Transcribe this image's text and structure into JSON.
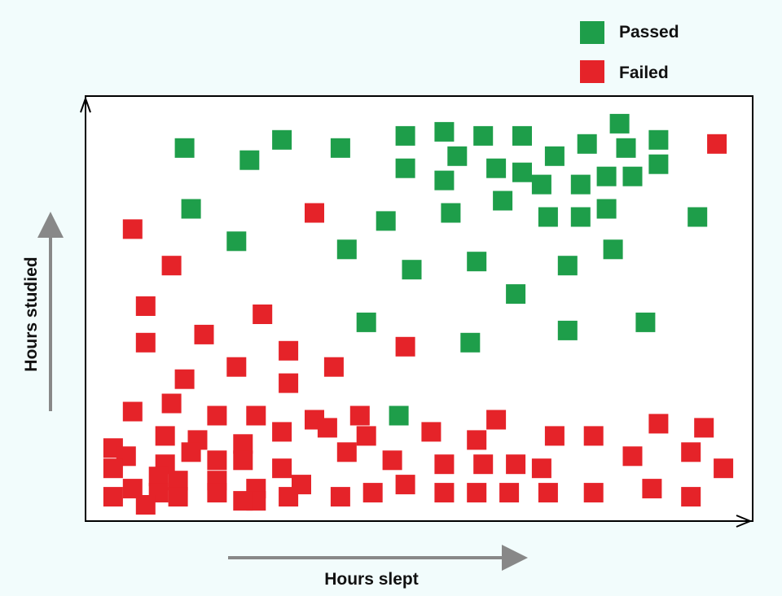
{
  "chart_data": {
    "type": "scatter",
    "title": "",
    "xlabel": "Hours slept",
    "ylabel": "Hours studied",
    "xlim": [
      0,
      1
    ],
    "ylim": [
      0,
      1
    ],
    "grid": false,
    "ticks": false,
    "legend_position": "top-right",
    "series": [
      {
        "name": "Passed",
        "color": "#1e9e4a",
        "points": [
          [
            0.14,
            0.9
          ],
          [
            0.24,
            0.87
          ],
          [
            0.29,
            0.92
          ],
          [
            0.38,
            0.9
          ],
          [
            0.48,
            0.93
          ],
          [
            0.54,
            0.94
          ],
          [
            0.6,
            0.93
          ],
          [
            0.66,
            0.93
          ],
          [
            0.76,
            0.91
          ],
          [
            0.81,
            0.96
          ],
          [
            0.87,
            0.92
          ],
          [
            0.82,
            0.9
          ],
          [
            0.56,
            0.88
          ],
          [
            0.71,
            0.88
          ],
          [
            0.48,
            0.85
          ],
          [
            0.62,
            0.85
          ],
          [
            0.66,
            0.84
          ],
          [
            0.69,
            0.81
          ],
          [
            0.75,
            0.81
          ],
          [
            0.79,
            0.83
          ],
          [
            0.83,
            0.83
          ],
          [
            0.87,
            0.86
          ],
          [
            0.54,
            0.82
          ],
          [
            0.15,
            0.75
          ],
          [
            0.45,
            0.72
          ],
          [
            0.55,
            0.74
          ],
          [
            0.63,
            0.77
          ],
          [
            0.7,
            0.73
          ],
          [
            0.75,
            0.73
          ],
          [
            0.79,
            0.75
          ],
          [
            0.93,
            0.73
          ],
          [
            0.22,
            0.67
          ],
          [
            0.39,
            0.65
          ],
          [
            0.49,
            0.6
          ],
          [
            0.59,
            0.62
          ],
          [
            0.73,
            0.61
          ],
          [
            0.8,
            0.65
          ],
          [
            0.65,
            0.54
          ],
          [
            0.42,
            0.47
          ],
          [
            0.58,
            0.42
          ],
          [
            0.73,
            0.45
          ],
          [
            0.85,
            0.47
          ],
          [
            0.47,
            0.24
          ]
        ]
      },
      {
        "name": "Failed",
        "color": "#e52329",
        "points": [
          [
            0.96,
            0.91
          ],
          [
            0.34,
            0.74
          ],
          [
            0.06,
            0.7
          ],
          [
            0.12,
            0.61
          ],
          [
            0.08,
            0.51
          ],
          [
            0.26,
            0.49
          ],
          [
            0.08,
            0.42
          ],
          [
            0.17,
            0.44
          ],
          [
            0.3,
            0.4
          ],
          [
            0.48,
            0.41
          ],
          [
            0.22,
            0.36
          ],
          [
            0.37,
            0.36
          ],
          [
            0.14,
            0.33
          ],
          [
            0.3,
            0.32
          ],
          [
            0.06,
            0.25
          ],
          [
            0.12,
            0.27
          ],
          [
            0.19,
            0.24
          ],
          [
            0.25,
            0.24
          ],
          [
            0.34,
            0.23
          ],
          [
            0.41,
            0.24
          ],
          [
            0.62,
            0.23
          ],
          [
            0.87,
            0.22
          ],
          [
            0.94,
            0.21
          ],
          [
            0.03,
            0.16
          ],
          [
            0.11,
            0.19
          ],
          [
            0.16,
            0.18
          ],
          [
            0.23,
            0.17
          ],
          [
            0.29,
            0.2
          ],
          [
            0.36,
            0.21
          ],
          [
            0.42,
            0.19
          ],
          [
            0.52,
            0.2
          ],
          [
            0.59,
            0.18
          ],
          [
            0.71,
            0.19
          ],
          [
            0.77,
            0.19
          ],
          [
            0.05,
            0.14
          ],
          [
            0.11,
            0.12
          ],
          [
            0.15,
            0.15
          ],
          [
            0.19,
            0.13
          ],
          [
            0.23,
            0.13
          ],
          [
            0.29,
            0.11
          ],
          [
            0.39,
            0.15
          ],
          [
            0.46,
            0.13
          ],
          [
            0.54,
            0.12
          ],
          [
            0.6,
            0.12
          ],
          [
            0.65,
            0.12
          ],
          [
            0.69,
            0.11
          ],
          [
            0.83,
            0.14
          ],
          [
            0.92,
            0.15
          ],
          [
            0.97,
            0.11
          ],
          [
            0.03,
            0.11
          ],
          [
            0.1,
            0.09
          ],
          [
            0.13,
            0.08
          ],
          [
            0.19,
            0.08
          ],
          [
            0.25,
            0.06
          ],
          [
            0.03,
            0.04
          ],
          [
            0.06,
            0.06
          ],
          [
            0.1,
            0.05
          ],
          [
            0.13,
            0.04
          ],
          [
            0.19,
            0.05
          ],
          [
            0.25,
            0.03
          ],
          [
            0.3,
            0.04
          ],
          [
            0.32,
            0.07
          ],
          [
            0.38,
            0.04
          ],
          [
            0.43,
            0.05
          ],
          [
            0.48,
            0.07
          ],
          [
            0.54,
            0.05
          ],
          [
            0.59,
            0.05
          ],
          [
            0.64,
            0.05
          ],
          [
            0.7,
            0.05
          ],
          [
            0.77,
            0.05
          ],
          [
            0.86,
            0.06
          ],
          [
            0.92,
            0.04
          ],
          [
            0.08,
            0.02
          ],
          [
            0.23,
            0.03
          ]
        ]
      }
    ]
  }
}
